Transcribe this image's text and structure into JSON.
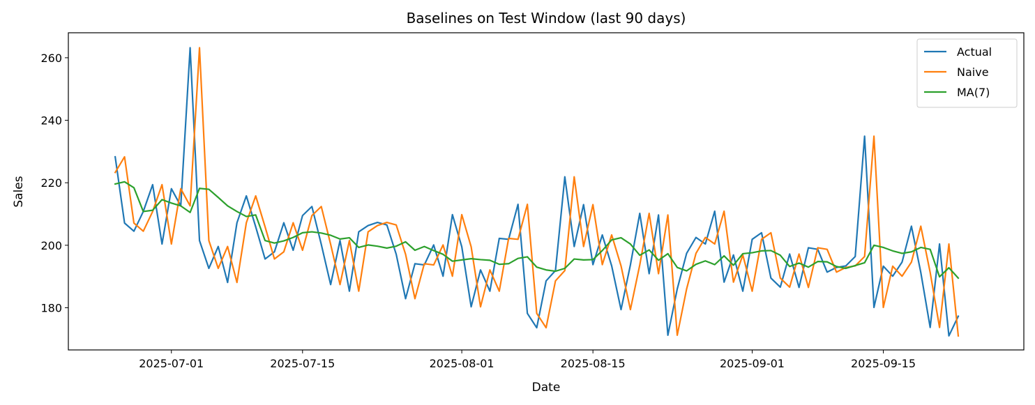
{
  "chart_data": {
    "type": "line",
    "title": "Baselines on Test Window (last 90 days)",
    "xlabel": "Date",
    "ylabel": "Sales",
    "x_start_date": "2025-06-25",
    "x_tick_labels": [
      "2025-07-01",
      "2025-07-15",
      "2025-08-01",
      "2025-08-15",
      "2025-09-01",
      "2025-09-15"
    ],
    "y_ticks": [
      180,
      200,
      220,
      240,
      260
    ],
    "xlim": [
      "2025-06-20",
      "2025-09-30"
    ],
    "ylim": [
      166.5,
      268
    ],
    "grid": false,
    "legend_position": "top-right",
    "series": [
      {
        "name": "Actual",
        "color": "#1f77b4",
        "values": [
          228.3,
          207.1,
          204.5,
          210.8,
          219.4,
          200.4,
          218.1,
          212.6,
          263.2,
          201.5,
          192.6,
          199.6,
          188.1,
          207.2,
          215.8,
          205.9,
          195.6,
          197.9,
          207.2,
          198.4,
          209.5,
          212.4,
          200.3,
          187.4,
          201.5,
          185.3,
          204.3,
          206.3,
          207.3,
          206.5,
          197.1,
          182.9,
          194.1,
          193.7,
          200.1,
          190.1,
          209.8,
          199.5,
          180.3,
          192.1,
          185.3,
          202.2,
          201.9,
          213.1,
          178.2,
          173.6,
          188.6,
          191.9,
          221.9,
          199.6,
          213.0,
          193.8,
          203.3,
          193.4,
          179.4,
          193.7,
          210.2,
          190.9,
          209.7,
          171.2,
          186.0,
          197.4,
          202.5,
          200.4,
          210.9,
          188.2,
          196.9,
          185.3,
          201.9,
          204.0,
          189.5,
          186.6,
          197.2,
          186.5,
          199.2,
          198.7,
          191.4,
          192.9,
          193.4,
          196.4,
          234.9,
          180.1,
          193.3,
          190.1,
          194.6,
          206.1,
          191.3,
          173.7,
          200.4,
          171.0,
          177.3
        ]
      },
      {
        "name": "Naive",
        "color": "#ff7f0e",
        "values": [
          223.3,
          228.3,
          207.1,
          204.5,
          210.8,
          219.4,
          200.4,
          218.1,
          212.6,
          263.2,
          201.5,
          192.6,
          199.6,
          188.1,
          207.2,
          215.8,
          205.9,
          195.6,
          197.9,
          207.2,
          198.4,
          209.5,
          212.4,
          200.3,
          187.4,
          201.5,
          185.3,
          204.3,
          206.3,
          207.3,
          206.5,
          197.1,
          182.9,
          194.1,
          193.7,
          200.1,
          190.1,
          209.8,
          199.5,
          180.3,
          192.1,
          185.3,
          202.2,
          201.9,
          213.1,
          178.2,
          173.6,
          188.6,
          191.9,
          221.9,
          199.6,
          213.0,
          193.8,
          203.3,
          193.4,
          179.4,
          193.7,
          210.2,
          190.9,
          209.7,
          171.2,
          186.0,
          197.4,
          202.5,
          200.4,
          210.9,
          188.2,
          196.9,
          185.3,
          201.9,
          204.0,
          189.5,
          186.6,
          197.2,
          186.5,
          199.2,
          198.7,
          191.4,
          192.9,
          193.4,
          196.4,
          234.9,
          180.1,
          193.3,
          190.1,
          194.6,
          206.1,
          191.3,
          173.7,
          200.4,
          171.0
        ]
      },
      {
        "name": "MA(7)",
        "color": "#2ca02c",
        "values": [
          219.6,
          220.3,
          218.4,
          210.8,
          211.2,
          214.6,
          213.5,
          212.6,
          210.5,
          218.2,
          217.9,
          215.3,
          212.6,
          210.8,
          209.2,
          209.7,
          201.5,
          200.7,
          201.4,
          202.5,
          204.0,
          204.3,
          203.9,
          203.2,
          202.0,
          202.4,
          199.3,
          200.1,
          199.7,
          199.1,
          199.7,
          201.1,
          198.4,
          199.6,
          198.3,
          197.1,
          194.9,
          195.3,
          195.7,
          195.4,
          195.2,
          193.9,
          194.1,
          195.8,
          196.3,
          193.0,
          192.1,
          191.7,
          192.6,
          195.6,
          195.3,
          195.4,
          198.3,
          201.7,
          202.4,
          200.4,
          196.8,
          198.5,
          195.2,
          197.3,
          192.9,
          191.8,
          193.9,
          195.0,
          193.8,
          196.6,
          193.6,
          197.3,
          197.6,
          198.2,
          198.3,
          196.8,
          193.2,
          194.3,
          193.0,
          194.8,
          194.7,
          193.2,
          192.6,
          193.5,
          194.4,
          200.0,
          199.3,
          198.2,
          197.4,
          197.9,
          199.3,
          198.7,
          189.9,
          192.8,
          189.5
        ]
      }
    ]
  }
}
